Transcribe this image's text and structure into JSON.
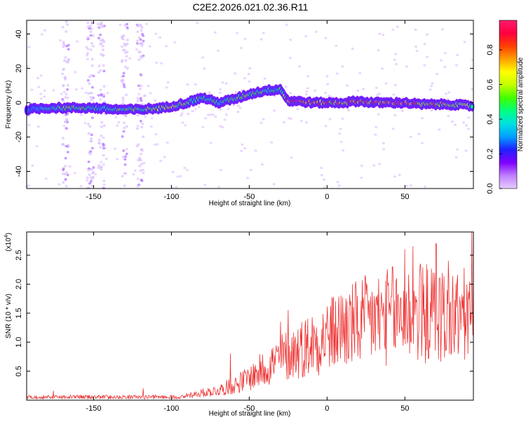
{
  "chart_data": [
    {
      "type": "heatmap",
      "title": "C2E2.2026.021.02.36.R11",
      "xlabel": "Height of straight line (km)",
      "ylabel": "Frequency (Hz)",
      "xlim": [
        -193,
        94
      ],
      "ylim": [
        -50,
        48
      ],
      "x_ticks": [
        -150,
        -100,
        -50,
        0,
        50
      ],
      "y_ticks": [
        40,
        20,
        0,
        -20,
        -40
      ],
      "colorbar": {
        "label": "Normalized spectral amplitude",
        "range": [
          0.0,
          0.97
        ],
        "ticks": [
          0.0,
          0.2,
          0.4,
          0.6,
          0.8
        ],
        "colors": [
          "#e6ccff",
          "#c080ff",
          "#8000ff",
          "#2020ff",
          "#00a0ff",
          "#00e0e0",
          "#00ff80",
          "#40ff00",
          "#c0ff00",
          "#ffff00",
          "#ffa000",
          "#ff4000",
          "#ff0040",
          "#ff1a6e"
        ]
      },
      "ridge": {
        "x": [
          -193,
          -180,
          -165,
          -150,
          -135,
          -120,
          -105,
          -90,
          -80,
          -70,
          -60,
          -50,
          -40,
          -30,
          -25,
          -20,
          -10,
          0,
          10,
          20,
          30,
          40,
          50,
          60,
          70,
          80,
          94
        ],
        "frequency": [
          -4,
          -3,
          -3,
          -3,
          -4,
          -4,
          -3,
          0,
          3,
          0,
          2,
          5,
          7,
          8,
          1,
          1,
          0,
          0,
          0,
          1,
          0,
          0,
          0,
          -1,
          -1,
          -1,
          -2
        ],
        "amplitude": [
          0.35,
          0.45,
          0.55,
          0.45,
          0.5,
          0.55,
          0.65,
          0.6,
          0.5,
          0.45,
          0.5,
          0.55,
          0.5,
          0.45,
          0.85,
          0.9,
          0.85,
          0.8,
          0.75,
          0.8,
          0.85,
          0.95,
          0.9,
          0.75,
          0.7,
          0.65,
          0.6
        ]
      }
    },
    {
      "type": "line",
      "xlabel": "Height of straight line (km)",
      "ylabel": "SNR (10 * v/v)",
      "y_scale_label": "(x10",
      "y_scale_exponent": "4",
      "xlim": [
        -193,
        94
      ],
      "ylim": [
        0,
        2.9
      ],
      "x_ticks": [
        -150,
        -100,
        -50,
        0,
        50
      ],
      "y_ticks": [
        0.5,
        1.0,
        1.5,
        2.0,
        2.5
      ],
      "y_tick_labels": [
        "0.5",
        "1.0",
        "1.5",
        "2.0",
        "2.5"
      ],
      "color": "#ee3333",
      "envelope": {
        "x": [
          -193,
          -170,
          -150,
          -120,
          -100,
          -85,
          -70,
          -60,
          -50,
          -40,
          -30,
          -20,
          -10,
          0,
          10,
          20,
          30,
          40,
          50,
          60,
          70,
          80,
          94
        ],
        "y": [
          0.05,
          0.06,
          0.05,
          0.06,
          0.07,
          0.12,
          0.2,
          0.3,
          0.45,
          0.65,
          0.85,
          1.0,
          1.15,
          1.3,
          1.45,
          1.55,
          1.65,
          1.7,
          1.75,
          1.75,
          1.75,
          1.7,
          1.7
        ]
      },
      "peaks": [
        {
          "x": -176,
          "y": 0.16
        },
        {
          "x": -118,
          "y": 0.2
        },
        {
          "x": -62,
          "y": 0.8
        },
        {
          "x": -30,
          "y": 1.35
        },
        {
          "x": -25,
          "y": 1.55
        },
        {
          "x": 9,
          "y": 1.8
        },
        {
          "x": 12,
          "y": 1.75
        },
        {
          "x": 42,
          "y": 2.3
        },
        {
          "x": 50,
          "y": 2.6
        },
        {
          "x": 55,
          "y": 2.65
        },
        {
          "x": 60,
          "y": 2.35
        },
        {
          "x": 70,
          "y": 2.7
        },
        {
          "x": 78,
          "y": 2.4
        },
        {
          "x": 93,
          "y": 2.9
        }
      ]
    }
  ]
}
